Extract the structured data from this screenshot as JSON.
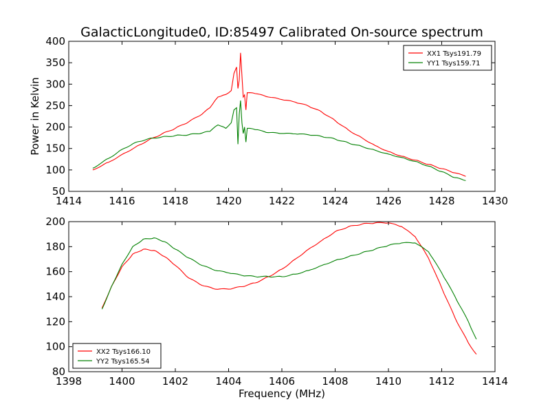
{
  "figure_title": "GalacticLongitude0, ID:85497 Calibrated On-source spectrum",
  "colors": {
    "xx": "#ff0000",
    "yy": "#008000",
    "axes": "#000000",
    "background": "#ffffff"
  },
  "chart_data": [
    {
      "type": "line",
      "title": "GalacticLongitude0, ID:85497 Calibrated On-source spectrum",
      "xlabel": "",
      "ylabel": "Power in Kelvin",
      "xlim": [
        1414,
        1430
      ],
      "ylim": [
        50,
        400
      ],
      "xticks": [
        1414,
        1416,
        1418,
        1420,
        1422,
        1424,
        1426,
        1428,
        1430
      ],
      "yticks": [
        50,
        100,
        150,
        200,
        250,
        300,
        350,
        400
      ],
      "legend_position": "top-right",
      "grid": false,
      "series": [
        {
          "name": "XX1 Tsys191.79",
          "color": "#ff0000",
          "x": [
            1414.9,
            1415.5,
            1416.0,
            1416.5,
            1417.0,
            1417.5,
            1418.0,
            1418.5,
            1419.0,
            1419.3,
            1419.6,
            1419.9,
            1420.1,
            1420.2,
            1420.3,
            1420.35,
            1420.4,
            1420.45,
            1420.5,
            1420.55,
            1420.6,
            1420.65,
            1420.7,
            1421.0,
            1421.5,
            1422.0,
            1422.5,
            1423.0,
            1423.5,
            1424.0,
            1424.5,
            1425.0,
            1425.5,
            1426.0,
            1426.5,
            1427.0,
            1427.5,
            1428.0,
            1428.5,
            1428.9
          ],
          "y": [
            100,
            118,
            136,
            153,
            170,
            184,
            197,
            212,
            230,
            245,
            270,
            276,
            285,
            325,
            340,
            290,
            310,
            373,
            320,
            270,
            275,
            240,
            280,
            278,
            270,
            264,
            258,
            249,
            235,
            215,
            193,
            175,
            157,
            143,
            132,
            123,
            113,
            103,
            93,
            85
          ]
        },
        {
          "name": "YY1 Tsys159.71",
          "color": "#008000",
          "x": [
            1414.9,
            1415.5,
            1416.0,
            1416.5,
            1417.0,
            1417.5,
            1418.0,
            1418.5,
            1419.0,
            1419.3,
            1419.6,
            1419.9,
            1420.1,
            1420.2,
            1420.3,
            1420.35,
            1420.4,
            1420.45,
            1420.5,
            1420.55,
            1420.6,
            1420.65,
            1420.7,
            1421.0,
            1421.5,
            1422.0,
            1422.5,
            1423.0,
            1423.5,
            1424.0,
            1424.5,
            1425.0,
            1425.5,
            1426.0,
            1426.5,
            1427.0,
            1427.5,
            1428.0,
            1428.5,
            1428.9
          ],
          "y": [
            104,
            127,
            148,
            164,
            173,
            177,
            180,
            182,
            186,
            190,
            205,
            197,
            210,
            240,
            245,
            160,
            230,
            262,
            210,
            185,
            200,
            165,
            197,
            194,
            187,
            185,
            184,
            182,
            178,
            172,
            163,
            155,
            146,
            137,
            129,
            120,
            109,
            96,
            82,
            75
          ]
        }
      ]
    },
    {
      "type": "line",
      "title": "",
      "xlabel": "Frequency (MHz)",
      "ylabel": "",
      "xlim": [
        1398,
        1414
      ],
      "ylim": [
        80,
        200
      ],
      "xticks": [
        1398,
        1400,
        1402,
        1404,
        1406,
        1408,
        1410,
        1412,
        1414
      ],
      "yticks": [
        80,
        100,
        120,
        140,
        160,
        180,
        200
      ],
      "legend_position": "bottom-left",
      "grid": false,
      "series": [
        {
          "name": "XX2 Tsys166.10",
          "color": "#ff0000",
          "x": [
            1399.25,
            1399.6,
            1400.0,
            1400.4,
            1400.8,
            1401.2,
            1401.6,
            1402.0,
            1402.5,
            1403.0,
            1403.5,
            1404.0,
            1404.5,
            1405.0,
            1405.5,
            1406.0,
            1406.5,
            1407.0,
            1407.5,
            1408.0,
            1408.5,
            1409.0,
            1409.5,
            1410.0,
            1410.5,
            1411.0,
            1411.5,
            1412.0,
            1412.5,
            1413.0,
            1413.3
          ],
          "y": [
            131,
            148,
            164,
            174,
            178,
            177,
            172,
            165,
            155,
            149,
            146,
            146,
            148,
            151,
            156,
            162,
            170,
            178,
            185,
            192,
            196,
            198,
            199,
            199,
            196,
            188,
            171,
            147,
            123,
            103,
            94
          ]
        },
        {
          "name": "YY2 Tsys165.54",
          "color": "#008000",
          "x": [
            1399.25,
            1399.6,
            1400.0,
            1400.4,
            1400.8,
            1401.2,
            1401.6,
            1402.0,
            1402.5,
            1403.0,
            1403.5,
            1404.0,
            1404.5,
            1405.0,
            1405.5,
            1406.0,
            1406.5,
            1407.0,
            1407.5,
            1408.0,
            1408.5,
            1409.0,
            1409.5,
            1410.0,
            1410.5,
            1411.0,
            1411.5,
            1412.0,
            1412.5,
            1413.0,
            1413.3
          ],
          "y": [
            130,
            148,
            166,
            180,
            186,
            187,
            184,
            178,
            171,
            165,
            161,
            159,
            157,
            156,
            156,
            156,
            158,
            161,
            165,
            169,
            172,
            175,
            178,
            181,
            183,
            183,
            176,
            159,
            140,
            120,
            106
          ]
        }
      ]
    }
  ]
}
